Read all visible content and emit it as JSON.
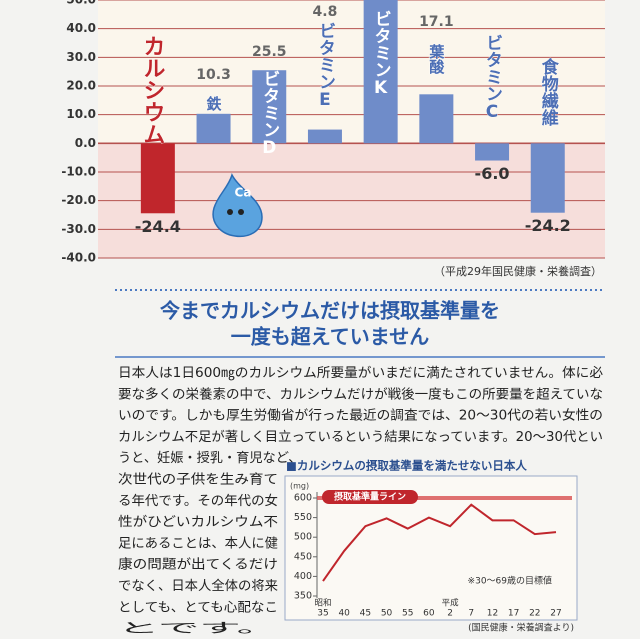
{
  "chart_data": [
    {
      "type": "bar",
      "categories": [
        "カルシウム",
        "鉄",
        "ビタミンD",
        "ビタミンE",
        "ビタミンK",
        "葉酸",
        "ビタミンC",
        "食物繊維"
      ],
      "values": [
        -24.4,
        10.3,
        25.5,
        4.8,
        52,
        17.1,
        -6.0,
        -24.2
      ],
      "value_labels": [
        "-24.4",
        "10.3",
        "25.5",
        "4.8",
        null,
        "17.1",
        "-6.0",
        "-24.2"
      ],
      "colors": [
        "#c0262c",
        "#6f8cc9",
        "#6f8cc9",
        "#6f8cc9",
        "#6f8cc9",
        "#6f8cc9",
        "#6f8cc9",
        "#6f8cc9"
      ],
      "ylim": [
        -40,
        50
      ],
      "yticks": [
        {
          "value": 50,
          "label": "50.0"
        },
        {
          "value": 40,
          "label": "40.0"
        },
        {
          "value": 30,
          "label": "30.0"
        },
        {
          "value": 20,
          "label": "20.0"
        },
        {
          "value": 10,
          "label": "10.0"
        },
        {
          "value": 0,
          "label": "0.0"
        },
        {
          "value": -10,
          "label": "-10.0"
        },
        {
          "value": -20,
          "label": "-20.0"
        },
        {
          "value": -30,
          "label": "-30.0"
        },
        {
          "value": -40,
          "label": "-40.0"
        }
      ],
      "grid": true,
      "mascot_label": "Ca",
      "source": "（平成29年国民健康・栄養調査）"
    },
    {
      "type": "line",
      "title": "■カルシウムの摂取基準量を満たせない日本人",
      "y_unit": "(mg)",
      "categories": [
        "35",
        "40",
        "45",
        "50",
        "55",
        "60",
        "2",
        "7",
        "12",
        "17",
        "22",
        "27"
      ],
      "era_labels": [
        "昭和",
        null,
        null,
        null,
        null,
        null,
        "平成",
        null,
        null,
        null,
        null,
        null
      ],
      "values": [
        388,
        465,
        528,
        548,
        522,
        550,
        528,
        583,
        543,
        543,
        508,
        513
      ],
      "color": "#c0262c",
      "ylim": [
        350,
        600
      ],
      "yticks": [
        350,
        400,
        450,
        500,
        550,
        600
      ],
      "reference_line": {
        "value": 600,
        "label": "摂取基準量ライン"
      },
      "note": "※30～69歳の目標値",
      "source": "(国民健康・栄養調査より)"
    }
  ],
  "heading": [
    "今までカルシウムだけは摂取基準量を",
    "一度も超えていません"
  ],
  "body": [
    "日本人は1日600㎎のカルシウム所要量がいまだに満たされていません。体に必",
    "要な多くの栄養素の中で、カルシウムだけが戦後一度もこの所要量を超えていな",
    "いのです。しかも厚生労働省が行った最近の調査では、20～30代の若い女性の",
    "カルシウム不足が著しく目立っているという結果になっています。20～30代とい",
    "うと、妊娠・授乳・育児など、",
    "次世代の子供を生み育て",
    "る年代です。その年代の女",
    "性がひどいカルシウム不",
    "足にあることは、本人に健",
    "康の問題が出てくるだけ",
    "でなく、日本人全体の将来",
    "としても、とても心配なこ",
    "とです。"
  ]
}
